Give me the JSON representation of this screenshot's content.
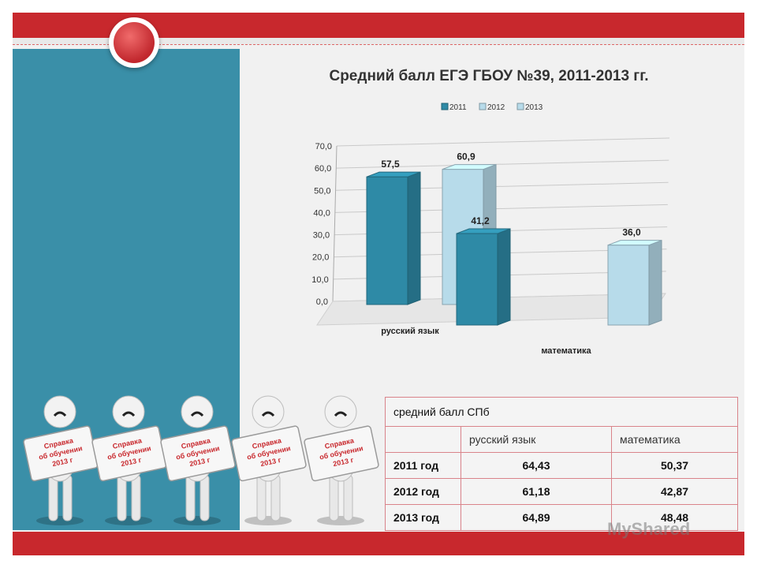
{
  "chart_data": {
    "type": "bar",
    "title": "Средний балл ЕГЭ ГБОУ №39, 2011-2013 гг.",
    "categories": [
      "русский язык",
      "математика"
    ],
    "legend": [
      "2011",
      "2012",
      "2013"
    ],
    "legend_position": "top",
    "bars": [
      {
        "category": "русский язык",
        "year": "2011",
        "value": 57.5,
        "label": "57,5"
      },
      {
        "category": "русский язык",
        "year": "2012",
        "value": 60.9,
        "label": "60,9"
      },
      {
        "category": "математика",
        "year": "2011",
        "value": 41.2,
        "label": "41,2"
      },
      {
        "category": "математика",
        "year": "2013",
        "value": 36.0,
        "label": "36,0"
      }
    ],
    "ylim": [
      0,
      70
    ],
    "yticks": [
      "0,0",
      "10,0",
      "20,0",
      "30,0",
      "40,0",
      "50,0",
      "60,0",
      "70,0"
    ],
    "grid": true,
    "colors": {
      "2011": "#2e8aa6",
      "2012": "#b7dbea",
      "2013": "#b7dbea"
    }
  },
  "table": {
    "caption": "средний балл СПб",
    "headers": [
      "",
      "русский язык",
      "математика"
    ],
    "rows": [
      [
        "2011 год",
        "64,43",
        "50,37"
      ],
      [
        "2012 год",
        "61,18",
        "42,87"
      ],
      [
        "2013 год",
        "64,89",
        "48,48"
      ]
    ]
  },
  "sign_text": "Справка об обучении 2013 г",
  "watermark": "MyShared",
  "colors": {
    "accent": "#c8282d",
    "panel": "#3a8fa8"
  }
}
